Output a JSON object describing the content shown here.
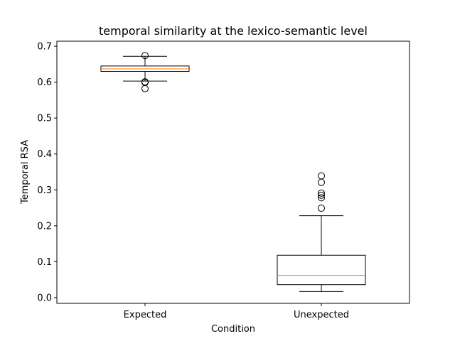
{
  "chart_data": {
    "type": "box",
    "title": "temporal similarity at the lexico-semantic level",
    "xlabel": "Condition",
    "ylabel": "Temporal RSA",
    "ylim": [
      -0.016,
      0.714
    ],
    "yticks": [
      0.0,
      0.1,
      0.2,
      0.3,
      0.4,
      0.5,
      0.6,
      0.7
    ],
    "ytick_labels": [
      "0.0",
      "0.1",
      "0.2",
      "0.3",
      "0.4",
      "0.5",
      "0.6",
      "0.7"
    ],
    "grid": false,
    "categories": [
      "Expected",
      "Unexpected"
    ],
    "boxes": [
      {
        "label": "Expected",
        "whisker_low": 0.603,
        "q1": 0.63,
        "median": 0.637,
        "q3": 0.645,
        "whisker_high": 0.672,
        "outliers": [
          0.674,
          0.601,
          0.599,
          0.582
        ]
      },
      {
        "label": "Unexpected",
        "whisker_low": 0.017,
        "q1": 0.036,
        "median": 0.062,
        "q3": 0.118,
        "whisker_high": 0.228,
        "outliers": [
          0.339,
          0.321,
          0.291,
          0.285,
          0.278,
          0.249
        ]
      }
    ],
    "colors": {
      "box": "#000000",
      "median": "#ff7f0e"
    }
  }
}
